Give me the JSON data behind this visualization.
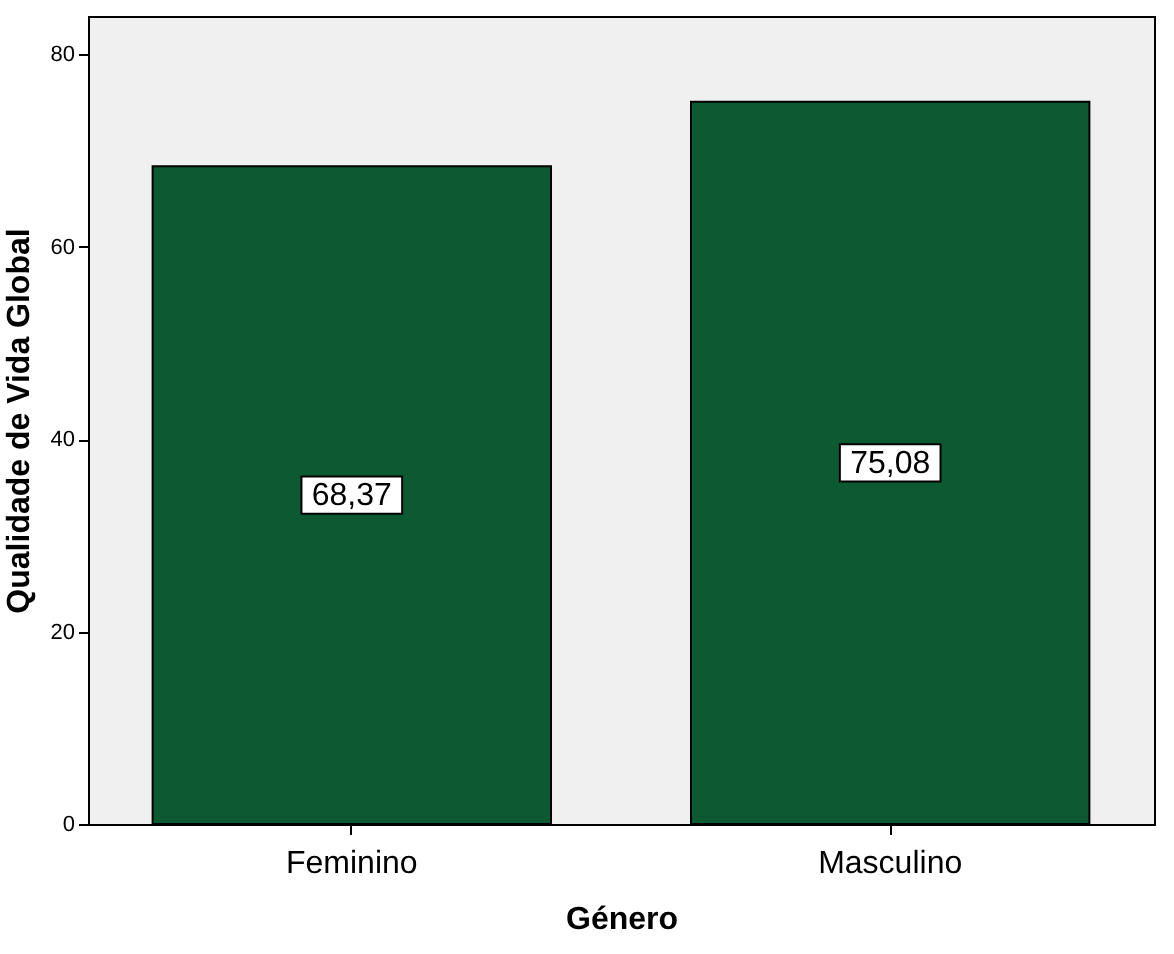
{
  "chart_data": {
    "type": "bar",
    "xlabel": "Género",
    "ylabel": "Qualidade de Vida Global",
    "categories": [
      "Feminino",
      "Masculino"
    ],
    "values": [
      68.37,
      75.08
    ],
    "value_labels": [
      "68,37",
      "75,08"
    ],
    "color": "#0d5a32",
    "ylim": [
      0,
      84
    ],
    "yticks": [
      0,
      20,
      40,
      60,
      80
    ],
    "grid": false
  }
}
